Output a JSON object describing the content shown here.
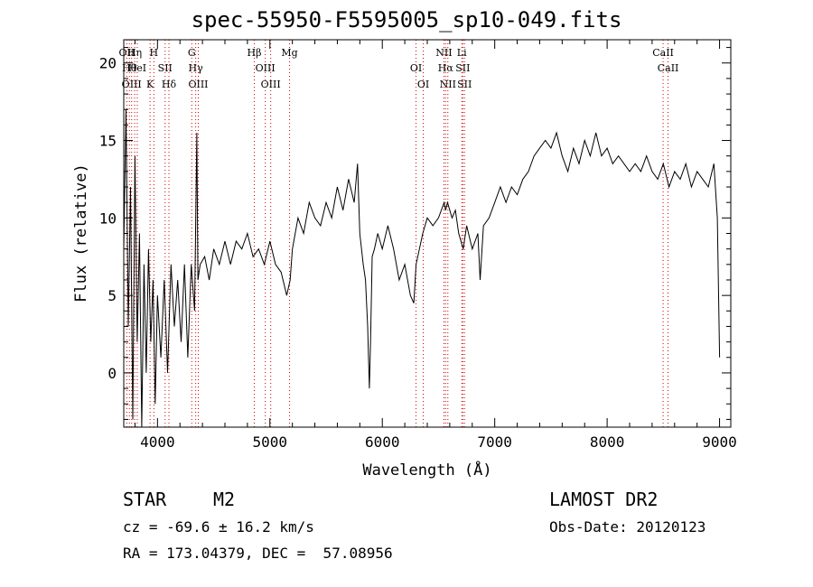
{
  "page": {
    "title": "spec-55950-F5595005_sp10-049.fits",
    "object_class": "STAR",
    "subclass": "M2",
    "survey": "LAMOST DR2",
    "cz_line": "cz = -69.6 ± 16.2 km/s",
    "obs_date_line": "Obs-Date: 20120123",
    "coord_line": "RA = 173.04379, DEC =  57.08956"
  },
  "chart_data": {
    "type": "line",
    "title": "spec-55950-F5595005_sp10-049.fits",
    "xlabel": "Wavelength (Å)",
    "ylabel": "Flux (relative)",
    "xlim": [
      3700,
      9100
    ],
    "ylim": [
      -3.5,
      21.5
    ],
    "xticks": [
      4000,
      5000,
      6000,
      7000,
      8000,
      9000
    ],
    "yticks": [
      0,
      5,
      10,
      15,
      20
    ],
    "x_tick_labels": [
      "4000",
      "5000",
      "6000",
      "7000",
      "8000",
      "9000"
    ],
    "y_tick_labels": [
      "0",
      "5",
      "10",
      "15",
      "20"
    ],
    "grid": false,
    "line_color": "#000000",
    "marker_color": "#cc0000",
    "series": [
      {
        "x": [
          3700,
          3720,
          3740,
          3760,
          3780,
          3800,
          3820,
          3840,
          3860,
          3880,
          3900,
          3920,
          3940,
          3960,
          3980,
          4000,
          4030,
          4060,
          4090,
          4120,
          4150,
          4180,
          4210,
          4240,
          4270,
          4300,
          4330,
          4350,
          4360,
          4380,
          4420,
          4460,
          4500,
          4550,
          4600,
          4650,
          4700,
          4750,
          4800,
          4850,
          4900,
          4950,
          5000,
          5050,
          5100,
          5150,
          5180,
          5200,
          5250,
          5300,
          5350,
          5400,
          5450,
          5500,
          5550,
          5600,
          5650,
          5700,
          5750,
          5780,
          5800,
          5830,
          5850,
          5870,
          5885,
          5895,
          5910,
          5930,
          5960,
          6000,
          6050,
          6100,
          6150,
          6200,
          6250,
          6280,
          6300,
          6330,
          6360,
          6400,
          6450,
          6500,
          6550,
          6563,
          6580,
          6620,
          6650,
          6680,
          6720,
          6750,
          6800,
          6850,
          6870,
          6900,
          6950,
          7000,
          7050,
          7100,
          7150,
          7200,
          7250,
          7300,
          7350,
          7400,
          7450,
          7500,
          7550,
          7600,
          7650,
          7700,
          7750,
          7800,
          7850,
          7900,
          7950,
          8000,
          8050,
          8100,
          8150,
          8200,
          8250,
          8300,
          8350,
          8400,
          8450,
          8500,
          8550,
          8600,
          8650,
          8700,
          8750,
          8800,
          8850,
          8900,
          8950,
          8980,
          9000
        ],
        "y": [
          8,
          17,
          3,
          12,
          -3,
          14,
          2,
          9,
          -4,
          7,
          0,
          8,
          2,
          6,
          -2,
          5,
          1,
          6,
          0,
          7,
          3,
          6,
          2,
          7,
          1,
          7,
          4,
          15.5,
          6,
          7,
          7.5,
          6,
          8,
          7,
          8.5,
          7,
          8.5,
          8,
          9,
          7.5,
          8,
          7,
          8.5,
          7,
          6.5,
          5,
          6,
          8,
          10,
          9,
          11,
          10,
          9.5,
          11,
          10,
          12,
          10.5,
          12.5,
          11,
          13.5,
          9,
          7,
          6,
          3,
          -1,
          2,
          7.5,
          8,
          9,
          8,
          9.5,
          8,
          6,
          7,
          5,
          4.5,
          7,
          8,
          9,
          10,
          9.5,
          10,
          11,
          10.5,
          11,
          10,
          10.5,
          9,
          8,
          9.5,
          8,
          9,
          6,
          9.5,
          10,
          11,
          12,
          11,
          12,
          11.5,
          12.5,
          13,
          14,
          14.5,
          15,
          14.5,
          15.5,
          14,
          13,
          14.5,
          13.5,
          15,
          14,
          15.5,
          14,
          14.5,
          13.5,
          14,
          13.5,
          13,
          13.5,
          13,
          14,
          13,
          12.5,
          13.5,
          12,
          13,
          12.5,
          13.5,
          12,
          13,
          12.5,
          12,
          13.5,
          10,
          1
        ]
      }
    ],
    "spectral_lines": [
      {
        "wavelength": 3727,
        "label": "OII"
      },
      {
        "wavelength": 3750,
        "label": "Hθ"
      },
      {
        "wavelength": 3770,
        "label": "OIII"
      },
      {
        "wavelength": 3797,
        "label": "Hη"
      },
      {
        "wavelength": 3820,
        "label": "HeI"
      },
      {
        "wavelength": 3934,
        "label": "K"
      },
      {
        "wavelength": 3968,
        "label": "H"
      },
      {
        "wavelength": 4068,
        "label": "SII"
      },
      {
        "wavelength": 4102,
        "label": "Hδ"
      },
      {
        "wavelength": 4305,
        "label": "G"
      },
      {
        "wavelength": 4340,
        "label": "Hγ"
      },
      {
        "wavelength": 4363,
        "label": "OIII"
      },
      {
        "wavelength": 4861,
        "label": "Hβ"
      },
      {
        "wavelength": 4959,
        "label": "OIII"
      },
      {
        "wavelength": 5007,
        "label": "OIII"
      },
      {
        "wavelength": 5175,
        "label": "Mg"
      },
      {
        "wavelength": 6300,
        "label": "OI"
      },
      {
        "wavelength": 6364,
        "label": "OI"
      },
      {
        "wavelength": 6548,
        "label": "NII"
      },
      {
        "wavelength": 6563,
        "label": "Hα"
      },
      {
        "wavelength": 6583,
        "label": "NII"
      },
      {
        "wavelength": 6707,
        "label": "Li"
      },
      {
        "wavelength": 6716,
        "label": "SII"
      },
      {
        "wavelength": 6731,
        "label": "SII"
      },
      {
        "wavelength": 8498,
        "label": "CaII"
      },
      {
        "wavelength": 8542,
        "label": "CaII"
      }
    ]
  }
}
